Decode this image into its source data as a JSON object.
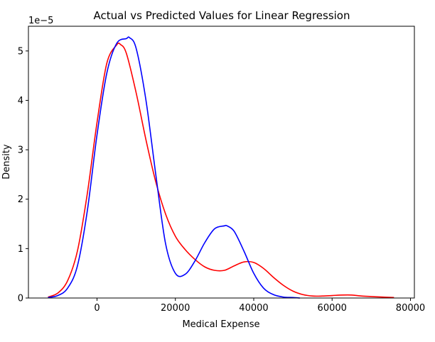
{
  "chart_data": {
    "type": "line",
    "title": "Actual vs Predicted Values for Linear Regression",
    "xlabel": "Medical Expense",
    "ylabel": "Density",
    "offset_label": "1e−5",
    "xlim": [
      -17500,
      81000
    ],
    "ylim": [
      0,
      5.5
    ],
    "x_ticks": [
      0,
      20000,
      40000,
      60000,
      80000
    ],
    "x_tick_labels": [
      "0",
      "20000",
      "40000",
      "60000",
      "80000"
    ],
    "y_ticks": [
      0,
      1,
      2,
      3,
      4,
      5
    ],
    "y_tick_labels": [
      "0",
      "1",
      "2",
      "3",
      "4",
      "5"
    ],
    "grid": false,
    "series": [
      {
        "color": "#ff0000",
        "x": [
          -12500,
          -10000,
          -7500,
          -5000,
          -2500,
          0,
          2500,
          5000,
          6000,
          7500,
          10000,
          12500,
          15000,
          17500,
          20000,
          22500,
          25000,
          27500,
          30000,
          32500,
          35000,
          37500,
          40000,
          42500,
          45000,
          47500,
          50000,
          52500,
          55000,
          57500,
          60000,
          62500,
          65000,
          67500,
          70000,
          72500,
          75800
        ],
        "y": [
          0.02,
          0.1,
          0.35,
          0.95,
          2.1,
          3.55,
          4.75,
          5.12,
          5.13,
          4.95,
          4.15,
          3.2,
          2.35,
          1.7,
          1.25,
          0.98,
          0.78,
          0.63,
          0.56,
          0.56,
          0.65,
          0.73,
          0.72,
          0.6,
          0.42,
          0.26,
          0.14,
          0.07,
          0.04,
          0.04,
          0.05,
          0.06,
          0.06,
          0.04,
          0.03,
          0.02,
          0.01
        ]
      },
      {
        "color": "#0000ff",
        "x": [
          -12500,
          -10000,
          -7500,
          -5000,
          -2500,
          0,
          2500,
          5000,
          7500,
          8300,
          10000,
          12500,
          15000,
          17500,
          20000,
          22500,
          25000,
          27500,
          30000,
          32500,
          33200,
          35000,
          37500,
          40000,
          42500,
          45000,
          47500,
          50000,
          51800
        ],
        "y": [
          0.01,
          0.05,
          0.2,
          0.65,
          1.75,
          3.3,
          4.55,
          5.15,
          5.25,
          5.27,
          5.05,
          4.0,
          2.5,
          1.1,
          0.5,
          0.48,
          0.75,
          1.12,
          1.4,
          1.46,
          1.46,
          1.35,
          0.95,
          0.5,
          0.2,
          0.07,
          0.02,
          0.01,
          0.0
        ]
      }
    ]
  }
}
